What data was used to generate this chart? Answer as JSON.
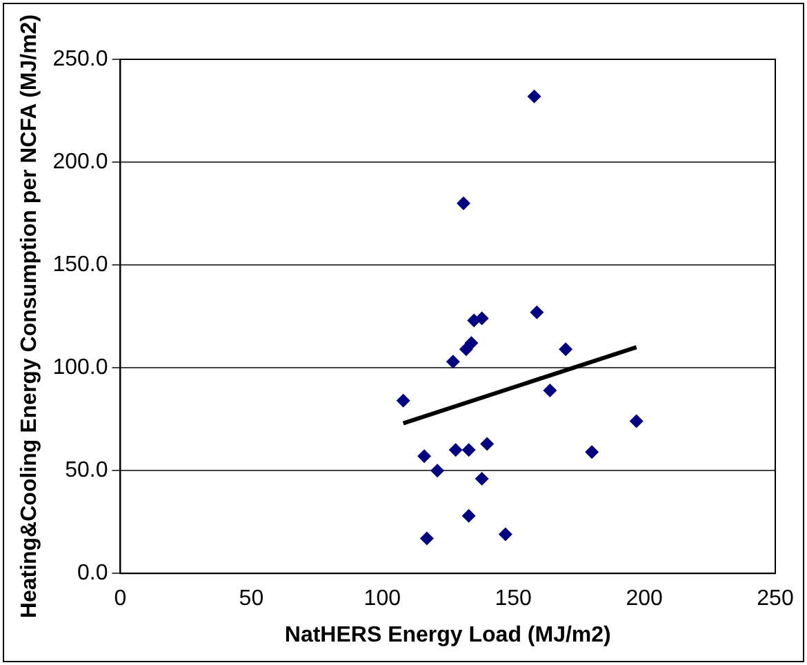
{
  "chart_data": {
    "type": "scatter",
    "xlabel": "NatHERS Energy Load (MJ/m2)",
    "ylabel": "Heating&Cooling Energy Consumption per NCFA (MJ/m2)",
    "grid": "y",
    "legend": false,
    "xlim": [
      0,
      250
    ],
    "xticks": [
      0,
      50,
      100,
      150,
      200,
      250
    ],
    "ylim": [
      0,
      250
    ],
    "yticks": [
      {
        "value": 0,
        "label": "0.0"
      },
      {
        "value": 50,
        "label": "50.0"
      },
      {
        "value": 100,
        "label": "100.0"
      },
      {
        "value": 150,
        "label": "150.0"
      },
      {
        "value": 200,
        "label": "200.0"
      },
      {
        "value": 250,
        "label": "250.0"
      }
    ],
    "series": [
      {
        "marker": "diamond",
        "color": "#000080",
        "x": [
          108,
          116,
          117,
          121,
          127,
          128,
          131,
          132,
          133,
          133,
          134,
          135,
          138,
          138,
          140,
          147,
          158,
          159,
          164,
          170,
          180,
          197
        ],
        "values": [
          84,
          57,
          17,
          50,
          103,
          60,
          180,
          109,
          60,
          28,
          112,
          123,
          124,
          46,
          63,
          19,
          232,
          127,
          89,
          109,
          59,
          74
        ]
      },
      {
        "type": "line",
        "color": "#000000",
        "x": [
          108,
          197
        ],
        "values": [
          73,
          110
        ]
      }
    ]
  }
}
